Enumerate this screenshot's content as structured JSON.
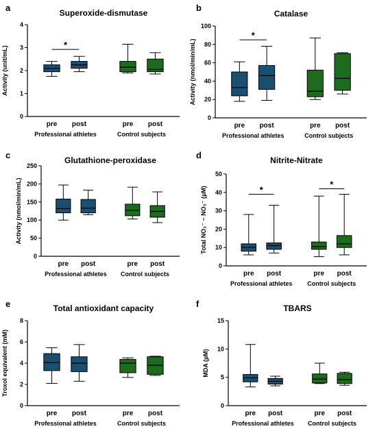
{
  "colors": {
    "pro": "#1b4f72",
    "control": "#1d6b1d",
    "line": "#000000"
  },
  "chart_data": [
    {
      "panel": "a",
      "type": "box",
      "title": "Superoxide-dismutase",
      "ylabel": "Activity (unit/mL)",
      "ylim": [
        0,
        4
      ],
      "yticks": [
        "0",
        "1",
        "2",
        "3",
        "4"
      ],
      "categories": [
        "pre",
        "post",
        "pre",
        "post"
      ],
      "groups": [
        "Professional athletes",
        "Control subjects"
      ],
      "series": [
        {
          "group": 0,
          "min": 1.75,
          "q1": 1.95,
          "median": 2.1,
          "q3": 2.25,
          "max": 2.4
        },
        {
          "group": 0,
          "min": 1.95,
          "q1": 2.1,
          "median": 2.25,
          "q3": 2.4,
          "max": 2.62
        },
        {
          "group": 1,
          "min": 1.9,
          "q1": 1.95,
          "median": 2.15,
          "q3": 2.4,
          "max": 3.15
        },
        {
          "group": 1,
          "min": 1.85,
          "q1": 1.95,
          "median": 2.05,
          "q3": 2.5,
          "max": 2.78
        }
      ],
      "significance": [
        {
          "from": 0,
          "to": 1,
          "label": "*",
          "y": 2.92
        }
      ]
    },
    {
      "panel": "b",
      "type": "box",
      "title": "Catalase",
      "ylabel": "Activity (nmol/min/mL)",
      "ylim": [
        0,
        100
      ],
      "yticks": [
        "0",
        "20",
        "40",
        "60",
        "80",
        "100"
      ],
      "categories": [
        "pre",
        "post",
        "pre",
        "post"
      ],
      "groups": [
        "Professional athletes",
        "Control subjects"
      ],
      "series": [
        {
          "group": 0,
          "min": 18,
          "q1": 24,
          "median": 33,
          "q3": 50,
          "max": 61
        },
        {
          "group": 0,
          "min": 19,
          "q1": 31,
          "median": 46,
          "q3": 57,
          "max": 78
        },
        {
          "group": 1,
          "min": 20,
          "q1": 23,
          "median": 29,
          "q3": 52,
          "max": 87
        },
        {
          "group": 1,
          "min": 26,
          "q1": 30,
          "median": 43,
          "q3": 70,
          "max": 71
        }
      ],
      "significance": [
        {
          "from": 0,
          "to": 1,
          "label": "*",
          "y": 85
        }
      ]
    },
    {
      "panel": "c",
      "type": "box",
      "title": "Glutathione-peroxidase",
      "ylabel": "Activity (nmol/min/mL)",
      "ylim": [
        0,
        250
      ],
      "yticks": [
        "0",
        "50",
        "100",
        "150",
        "200",
        "250"
      ],
      "categories": [
        "pre",
        "post",
        "pre",
        "post"
      ],
      "groups": [
        "Professional athletes",
        "Control subjects"
      ],
      "series": [
        {
          "group": 0,
          "min": 100,
          "q1": 120,
          "median": 132,
          "q3": 158,
          "max": 197
        },
        {
          "group": 0,
          "min": 115,
          "q1": 120,
          "median": 133,
          "q3": 157,
          "max": 183
        },
        {
          "group": 1,
          "min": 103,
          "q1": 112,
          "median": 127,
          "q3": 144,
          "max": 191
        },
        {
          "group": 1,
          "min": 93,
          "q1": 108,
          "median": 124,
          "q3": 140,
          "max": 178
        }
      ],
      "significance": []
    },
    {
      "panel": "d",
      "type": "box",
      "title": "Nitrite-Nitrate",
      "ylabel": "Total NO₂⁻ − NO₃⁻ (µM)",
      "ylim": [
        0,
        50
      ],
      "yticks": [
        "0",
        "10",
        "20",
        "30",
        "40",
        "50"
      ],
      "categories": [
        "pre",
        "post",
        "pre",
        "post"
      ],
      "groups": [
        "Professional athletes",
        "Control subjects"
      ],
      "series": [
        {
          "group": 0,
          "min": 6,
          "q1": 8,
          "median": 10,
          "q3": 12,
          "max": 28
        },
        {
          "group": 0,
          "min": 7,
          "q1": 9,
          "median": 11,
          "q3": 12.5,
          "max": 33
        },
        {
          "group": 1,
          "min": 5,
          "q1": 9,
          "median": 10.5,
          "q3": 13,
          "max": 38
        },
        {
          "group": 1,
          "min": 6,
          "q1": 10,
          "median": 12,
          "q3": 16.5,
          "max": 39
        }
      ],
      "significance": [
        {
          "from": 0,
          "to": 1,
          "label": "*",
          "y": 39
        },
        {
          "from": 2,
          "to": 3,
          "label": "*",
          "y": 42
        }
      ]
    },
    {
      "panel": "e",
      "type": "box",
      "title": "Total antioxidant capacity",
      "ylabel": "Troxol equivalent (mM)",
      "ylim": [
        0,
        8
      ],
      "yticks": [
        "0",
        "2",
        "4",
        "6",
        "8"
      ],
      "categories": [
        "pre",
        "post",
        "pre",
        "post"
      ],
      "groups": [
        "Professional athletes",
        "Control subjects"
      ],
      "series": [
        {
          "group": 0,
          "min": 2.1,
          "q1": 3.3,
          "median": 4.05,
          "q3": 4.9,
          "max": 5.45
        },
        {
          "group": 0,
          "min": 2.3,
          "q1": 3.2,
          "median": 4.0,
          "q3": 4.6,
          "max": 5.75
        },
        {
          "group": 1,
          "min": 2.65,
          "q1": 3.1,
          "median": 4.0,
          "q3": 4.35,
          "max": 4.5
        },
        {
          "group": 1,
          "min": 2.85,
          "q1": 2.95,
          "median": 3.8,
          "q3": 4.6,
          "max": 4.65
        }
      ],
      "significance": []
    },
    {
      "panel": "f",
      "type": "box",
      "title": "TBARS",
      "ylabel": "MDA (µM)",
      "ylim": [
        0,
        15
      ],
      "yticks": [
        "0",
        "5",
        "10",
        "15"
      ],
      "categories": [
        "pre",
        "post",
        "pre",
        "post"
      ],
      "groups": [
        "Professional athletes",
        "Control subjects"
      ],
      "series": [
        {
          "group": 0,
          "min": 3.3,
          "q1": 4.2,
          "median": 4.9,
          "q3": 5.5,
          "max": 10.8
        },
        {
          "group": 0,
          "min": 3.5,
          "q1": 3.8,
          "median": 4.3,
          "q3": 4.8,
          "max": 5.2
        },
        {
          "group": 1,
          "min": 3.9,
          "q1": 4.0,
          "median": 4.7,
          "q3": 5.6,
          "max": 7.5
        },
        {
          "group": 1,
          "min": 3.6,
          "q1": 3.9,
          "median": 4.6,
          "q3": 5.7,
          "max": 5.9
        }
      ],
      "significance": []
    }
  ]
}
